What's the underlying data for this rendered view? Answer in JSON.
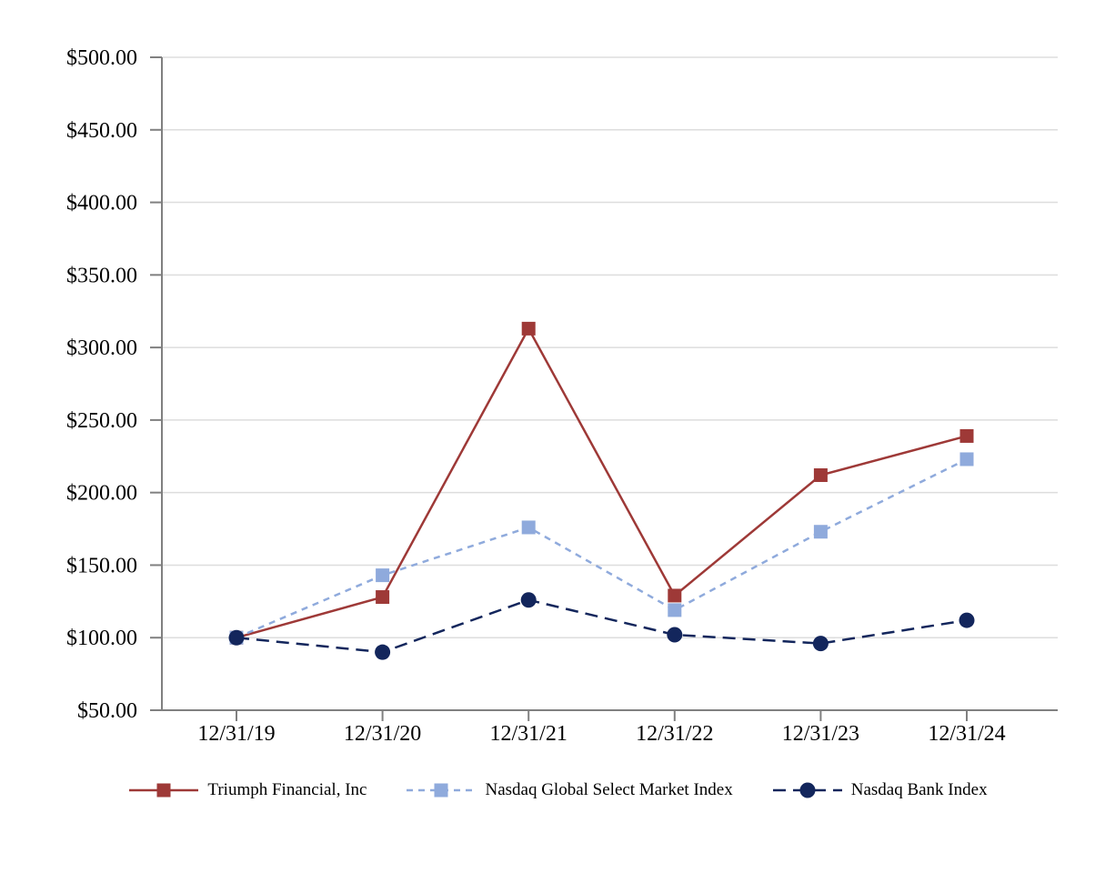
{
  "chart_data": {
    "type": "line",
    "categories": [
      "12/31/19",
      "12/31/20",
      "12/31/21",
      "12/31/22",
      "12/31/23",
      "12/31/24"
    ],
    "y_axis": {
      "min": 50,
      "max": 500,
      "step": 50,
      "tick_labels": [
        "$50.00",
        "$100.00",
        "$150.00",
        "$200.00",
        "$250.00",
        "$300.00",
        "$350.00",
        "$400.00",
        "$450.00",
        "$500.00"
      ]
    },
    "series": [
      {
        "name": "Triumph Financial, Inc",
        "color": "#9E3937",
        "line_style": "solid",
        "dash": "",
        "marker": "square",
        "values": [
          100,
          128,
          313,
          129,
          212,
          239
        ]
      },
      {
        "name": "Nasdaq Global Select Market Index",
        "color": "#8FAADC",
        "line_style": "dashed",
        "dash": "7 6",
        "marker": "square",
        "values": [
          100,
          143,
          176,
          119,
          173,
          223
        ]
      },
      {
        "name": "Nasdaq Bank Index",
        "color": "#13265C",
        "line_style": "dashed",
        "dash": "14 8",
        "marker": "circle",
        "values": [
          100,
          90,
          126,
          102,
          96,
          112
        ]
      }
    ],
    "grid": {
      "color": "#DDDDDD",
      "axis_color": "#808080"
    },
    "legend_position": "bottom"
  }
}
